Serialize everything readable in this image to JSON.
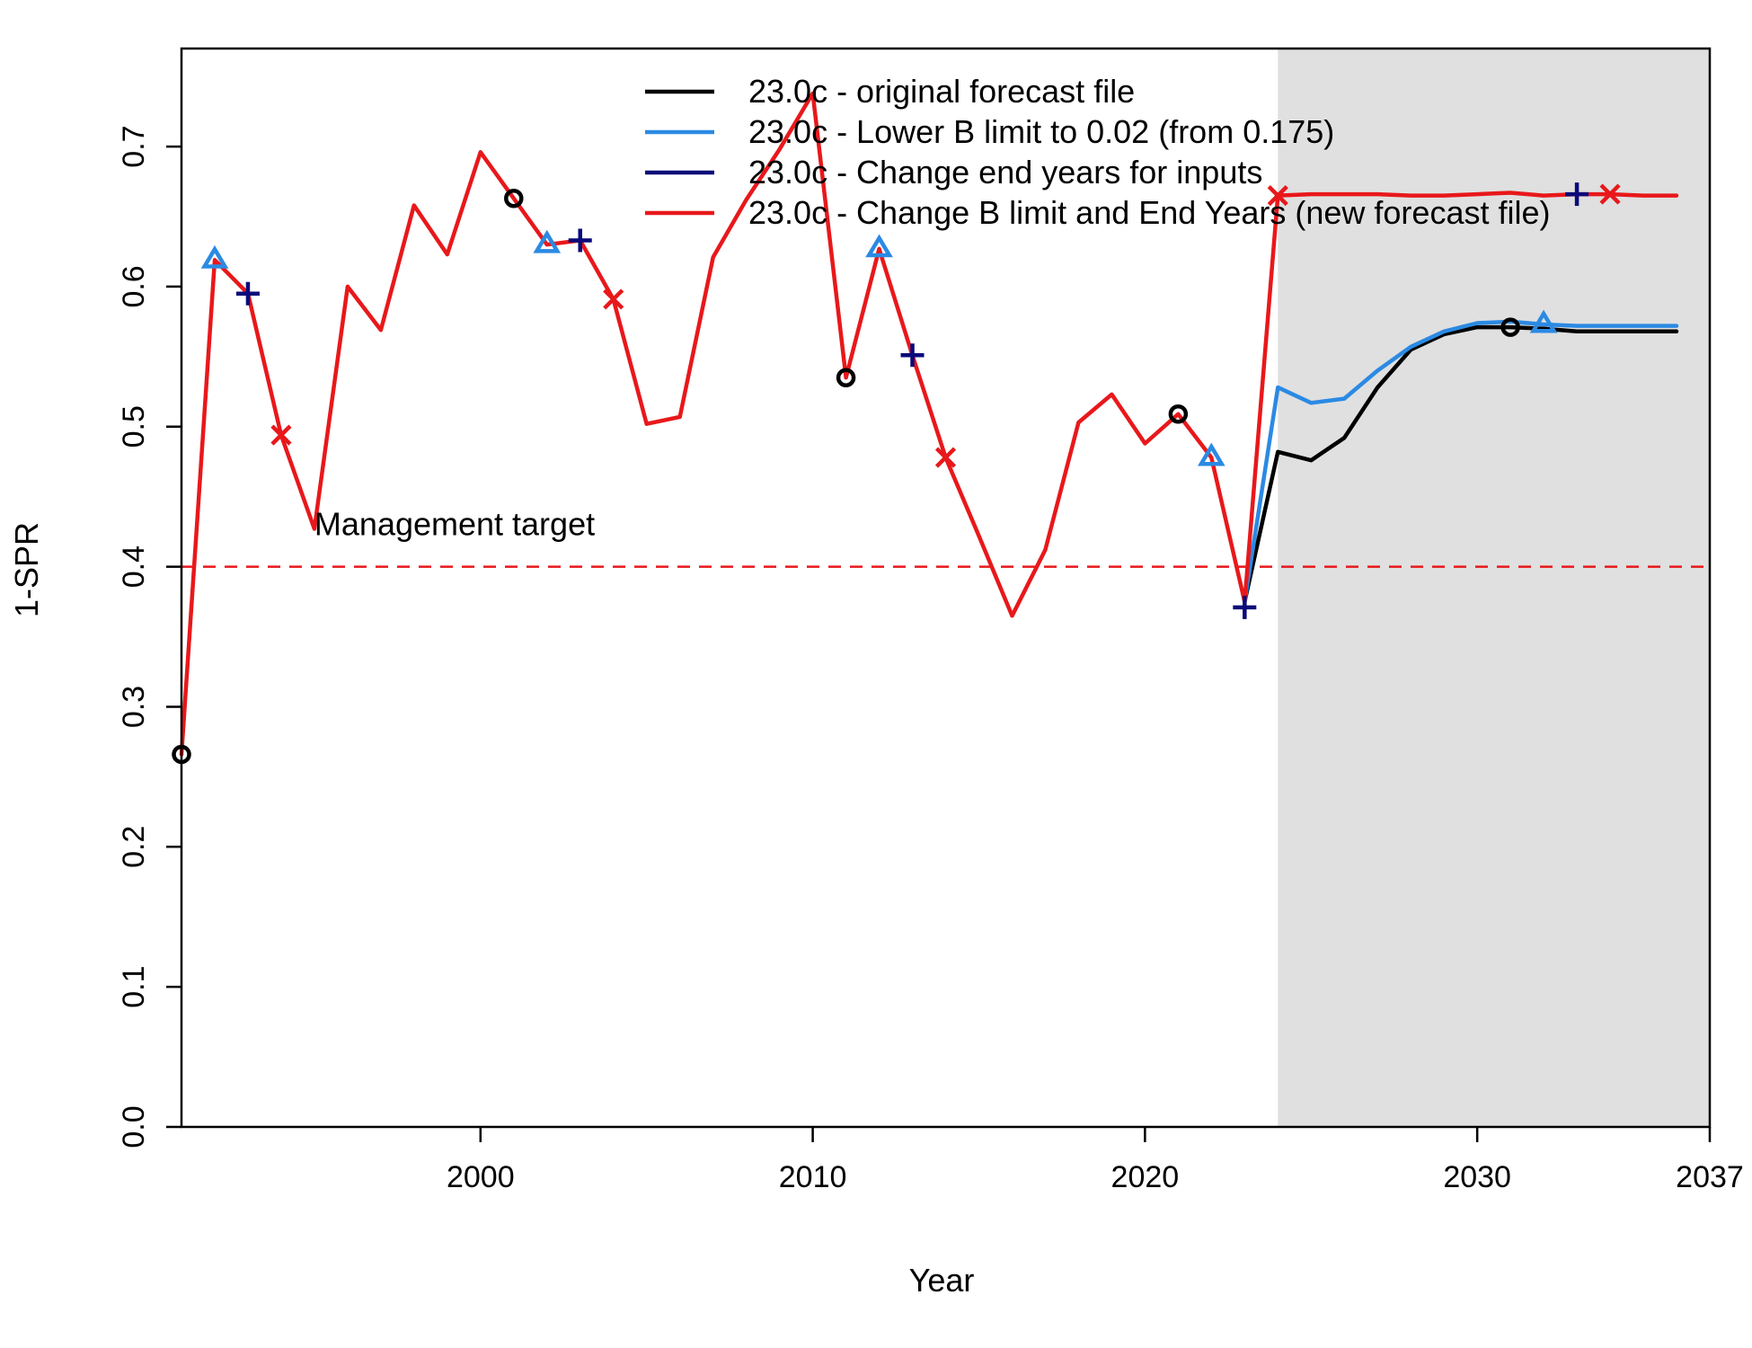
{
  "chart_data": {
    "type": "line",
    "xlabel": "Year",
    "ylabel": "1-SPR",
    "xlim": [
      1991,
      2037
    ],
    "ylim": [
      0,
      0.77
    ],
    "x_ticks": [
      2000,
      2010,
      2020,
      2030,
      2037
    ],
    "y_ticks": [
      0.0,
      0.1,
      0.2,
      0.3,
      0.4,
      0.5,
      0.6,
      0.7
    ],
    "y_tick_labels": [
      "0.0",
      "0.1",
      "0.2",
      "0.3",
      "0.4",
      "0.5",
      "0.6",
      "0.7"
    ],
    "forecast_shade": {
      "from_year": 2024,
      "to_year": 2037,
      "color": "#e0e0e0"
    },
    "reference_line": {
      "y": 0.4,
      "color": "#e8181b",
      "style": "dashed",
      "label": "Management target",
      "label_x": 1995
    },
    "series": [
      {
        "name": "23.0c - original forecast file",
        "color": "#000000",
        "marker": "circle",
        "marker_points": [
          [
            1991,
            0.266
          ],
          [
            2001,
            0.663
          ],
          [
            2011,
            0.535
          ],
          [
            2021,
            0.509
          ],
          [
            2031,
            0.571
          ]
        ],
        "points": [
          [
            2023,
            0.375
          ],
          [
            2024,
            0.482
          ],
          [
            2025,
            0.476
          ],
          [
            2026,
            0.492
          ],
          [
            2027,
            0.528
          ],
          [
            2028,
            0.555
          ],
          [
            2029,
            0.566
          ],
          [
            2030,
            0.571
          ],
          [
            2031,
            0.571
          ],
          [
            2032,
            0.57
          ],
          [
            2033,
            0.568
          ],
          [
            2034,
            0.568
          ],
          [
            2035,
            0.568
          ],
          [
            2036,
            0.568
          ]
        ]
      },
      {
        "name": "23.0c - Lower B limit to 0.02 (from 0.175)",
        "color": "#2b8ae3",
        "marker": "triangle",
        "marker_points": [
          [
            1992,
            0.619
          ],
          [
            2002,
            0.63
          ],
          [
            2012,
            0.627
          ],
          [
            2022,
            0.478
          ],
          [
            2032,
            0.573
          ]
        ],
        "points": [
          [
            2023,
            0.375
          ],
          [
            2024,
            0.528
          ],
          [
            2025,
            0.517
          ],
          [
            2026,
            0.52
          ],
          [
            2027,
            0.54
          ],
          [
            2028,
            0.557
          ],
          [
            2029,
            0.568
          ],
          [
            2030,
            0.574
          ],
          [
            2031,
            0.575
          ],
          [
            2032,
            0.573
          ],
          [
            2033,
            0.572
          ],
          [
            2034,
            0.572
          ],
          [
            2035,
            0.572
          ],
          [
            2036,
            0.572
          ]
        ]
      },
      {
        "name": "23.0c - Change end years for inputs",
        "color": "#0a0a7a",
        "marker": "plus",
        "marker_points": [
          [
            1993,
            0.595
          ],
          [
            2003,
            0.633
          ],
          [
            2013,
            0.551
          ],
          [
            2023,
            0.371
          ],
          [
            2033,
            0.666
          ]
        ],
        "points": []
      },
      {
        "name": "23.0c - Change B limit and End Years (new forecast file)",
        "color": "#e8181b",
        "marker": "cross",
        "marker_points": [
          [
            1994,
            0.494
          ],
          [
            2004,
            0.591
          ],
          [
            2014,
            0.478
          ],
          [
            2024,
            0.665
          ],
          [
            2034,
            0.666
          ]
        ],
        "points": [
          [
            1991,
            0.266
          ],
          [
            1992,
            0.619
          ],
          [
            1993,
            0.595
          ],
          [
            1994,
            0.494
          ],
          [
            1995,
            0.427
          ],
          [
            1996,
            0.6
          ],
          [
            1997,
            0.569
          ],
          [
            1998,
            0.658
          ],
          [
            1999,
            0.623
          ],
          [
            2000,
            0.696
          ],
          [
            2001,
            0.663
          ],
          [
            2002,
            0.63
          ],
          [
            2003,
            0.633
          ],
          [
            2004,
            0.591
          ],
          [
            2005,
            0.502
          ],
          [
            2006,
            0.507
          ],
          [
            2007,
            0.621
          ],
          [
            2008,
            0.662
          ],
          [
            2009,
            0.698
          ],
          [
            2010,
            0.738
          ],
          [
            2011,
            0.535
          ],
          [
            2012,
            0.627
          ],
          [
            2013,
            0.551
          ],
          [
            2014,
            0.478
          ],
          [
            2015,
            0.422
          ],
          [
            2016,
            0.365
          ],
          [
            2017,
            0.412
          ],
          [
            2018,
            0.503
          ],
          [
            2019,
            0.523
          ],
          [
            2020,
            0.488
          ],
          [
            2021,
            0.509
          ],
          [
            2022,
            0.478
          ],
          [
            2023,
            0.375
          ],
          [
            2024,
            0.665
          ],
          [
            2025,
            0.666
          ],
          [
            2026,
            0.666
          ],
          [
            2027,
            0.666
          ],
          [
            2028,
            0.665
          ],
          [
            2029,
            0.665
          ],
          [
            2030,
            0.666
          ],
          [
            2031,
            0.667
          ],
          [
            2032,
            0.665
          ],
          [
            2033,
            0.666
          ],
          [
            2034,
            0.666
          ],
          [
            2035,
            0.665
          ],
          [
            2036,
            0.665
          ]
        ]
      }
    ],
    "legend": {
      "position": "top-right"
    }
  }
}
